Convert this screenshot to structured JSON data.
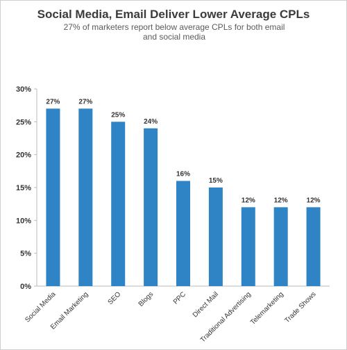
{
  "chart_data": {
    "type": "bar",
    "title": "Social Media, Email Deliver Lower Average CPLs",
    "subtitle": "27% of marketers report below average CPLs for both email and social media",
    "categories": [
      "Social Media",
      "Email Marketing",
      "SEO",
      "Blogs",
      "PPC",
      "Direct Mail",
      "Traditional Advertising",
      "Telemarketing",
      "Trade Shows"
    ],
    "values": [
      27,
      27,
      25,
      24,
      16,
      15,
      12,
      12,
      12
    ],
    "data_labels": [
      "27%",
      "27%",
      "25%",
      "24%",
      "16%",
      "15%",
      "12%",
      "12%",
      "12%"
    ],
    "ylim": [
      0,
      30
    ],
    "yticks": [
      0,
      5,
      10,
      15,
      20,
      25,
      30
    ],
    "ytick_labels": [
      "0%",
      "5%",
      "10%",
      "15%",
      "20%",
      "25%",
      "30%"
    ],
    "xlabel": "",
    "ylabel": "",
    "grid": false,
    "legend": "none",
    "bar_color": "#2e84c4",
    "axis_color": "#bbbbbb"
  }
}
